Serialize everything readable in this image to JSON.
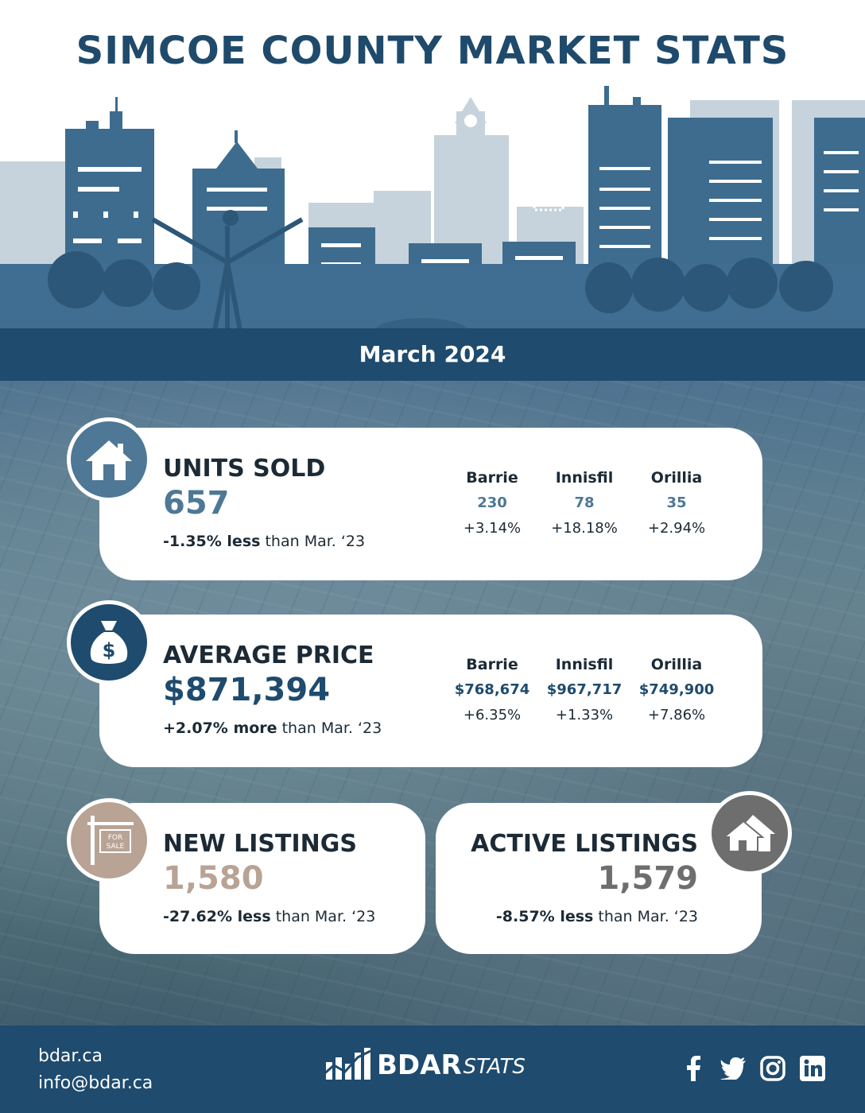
{
  "title": "SIMCOE COUNTY MARKET STATS",
  "month": "March 2024",
  "colors": {
    "navy": "#1e4b6e",
    "steel": "#4e7895",
    "tan": "#b8a394",
    "gray": "#6e6e6e"
  },
  "units_sold": {
    "label": "UNITS SOLD",
    "value": "657",
    "change_bold": "-1.35% less",
    "change_rest": " than Mar. ‘23",
    "icon": "house-icon",
    "cities": [
      {
        "name": "Barrie",
        "value": "230",
        "change": "+3.14%"
      },
      {
        "name": "Innisfil",
        "value": "78",
        "change": "+18.18%"
      },
      {
        "name": "Orillia",
        "value": "35",
        "change": "+2.94%"
      }
    ]
  },
  "average_price": {
    "label": "AVERAGE PRICE",
    "value": "$871,394",
    "change_bold": "+2.07% more",
    "change_rest": " than Mar. ‘23",
    "icon": "money-bag-icon",
    "cities": [
      {
        "name": "Barrie",
        "value": "$768,674",
        "change": "+6.35%"
      },
      {
        "name": "Innisfil",
        "value": "$967,717",
        "change": "+1.33%"
      },
      {
        "name": "Orillia",
        "value": "$749,900",
        "change": "+7.86%"
      }
    ]
  },
  "new_listings": {
    "label": "NEW LISTINGS",
    "value": "1,580",
    "change_bold": "-27.62% less",
    "change_rest": " than Mar. ‘23",
    "icon": "for-sale-sign-icon",
    "sign_top": "FOR",
    "sign_bottom": "SALE"
  },
  "active_listings": {
    "label": "ACTIVE LISTINGS",
    "value": "1,579",
    "change_bold": "-8.57% less",
    "change_rest": " than Mar. ‘23",
    "icon": "houses-icon"
  },
  "footer": {
    "website": "bdar.ca",
    "email": "info@bdar.ca",
    "logo_bold": "BDAR",
    "logo_italic": "STATS",
    "social": [
      "facebook-icon",
      "twitter-icon",
      "instagram-icon",
      "linkedin-icon"
    ]
  }
}
